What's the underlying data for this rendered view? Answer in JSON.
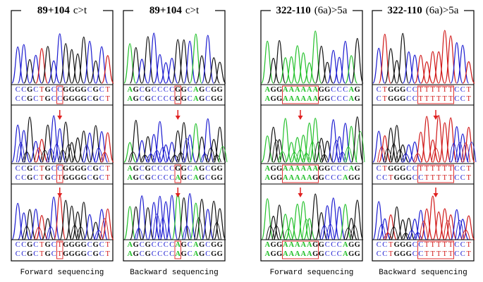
{
  "panels": [
    {
      "title": {
        "locus": "89+104",
        "change": "c>t"
      },
      "blocks": [
        [
          "CCGCTGCCGGGGCGCT",
          "CCGCTGCCGGGGCGCT"
        ],
        [
          "CCGCTGCCGGGGCGCT",
          "CCGCTGCTGGGGCGCT"
        ],
        [
          "CCGCTGCTGGGGCGCT",
          "CCGCTGCTGGGGCGCT"
        ]
      ]
    },
    {
      "title": {
        "locus": "89+104",
        "change": "c>t"
      },
      "blocks": [
        [
          "AGCGCCCCGGCAGCGG",
          "AGCGCCCCGGCAGCGG"
        ],
        [
          "AGCGCCCCGGCAGCGG",
          "AGCGCCCCAGCAGCGG"
        ],
        [
          "AGCGCCCCAGCAGCGG",
          "AGCGCCCCAGCAGCGG"
        ]
      ]
    },
    {
      "title": {
        "locus": "322-110",
        "change": "(6a)>5a"
      },
      "blocks": [
        [
          "AGGAAAAAAGGCCCAG",
          "AGGAAAAAAGGCCCAG"
        ],
        [
          "AGGAAAAAAGGCCCAG",
          "AGGAAAAAGGCCCAGG"
        ],
        [
          "AGGAAAAAGGCCCAGG",
          "AGGAAAAAGGCCCAGG"
        ]
      ]
    },
    {
      "title": {
        "locus": "322-110",
        "change": "(6a)>5a"
      },
      "blocks": [
        [
          "CTGGGCCTTTTTTCCT",
          "CTGGGCCTTTTTTCCT"
        ],
        [
          "CTGGGCCTTTTTTCCT",
          "CCTGGGCCTTTTTCCT"
        ],
        [
          "CCTGGGCCTTTTTCCT",
          "CCTGGGCCTTTTTCCT"
        ]
      ]
    }
  ],
  "captions": [
    "Forward sequencing",
    "Backward sequencing",
    "Forward sequencing",
    "Backward sequencing"
  ]
}
